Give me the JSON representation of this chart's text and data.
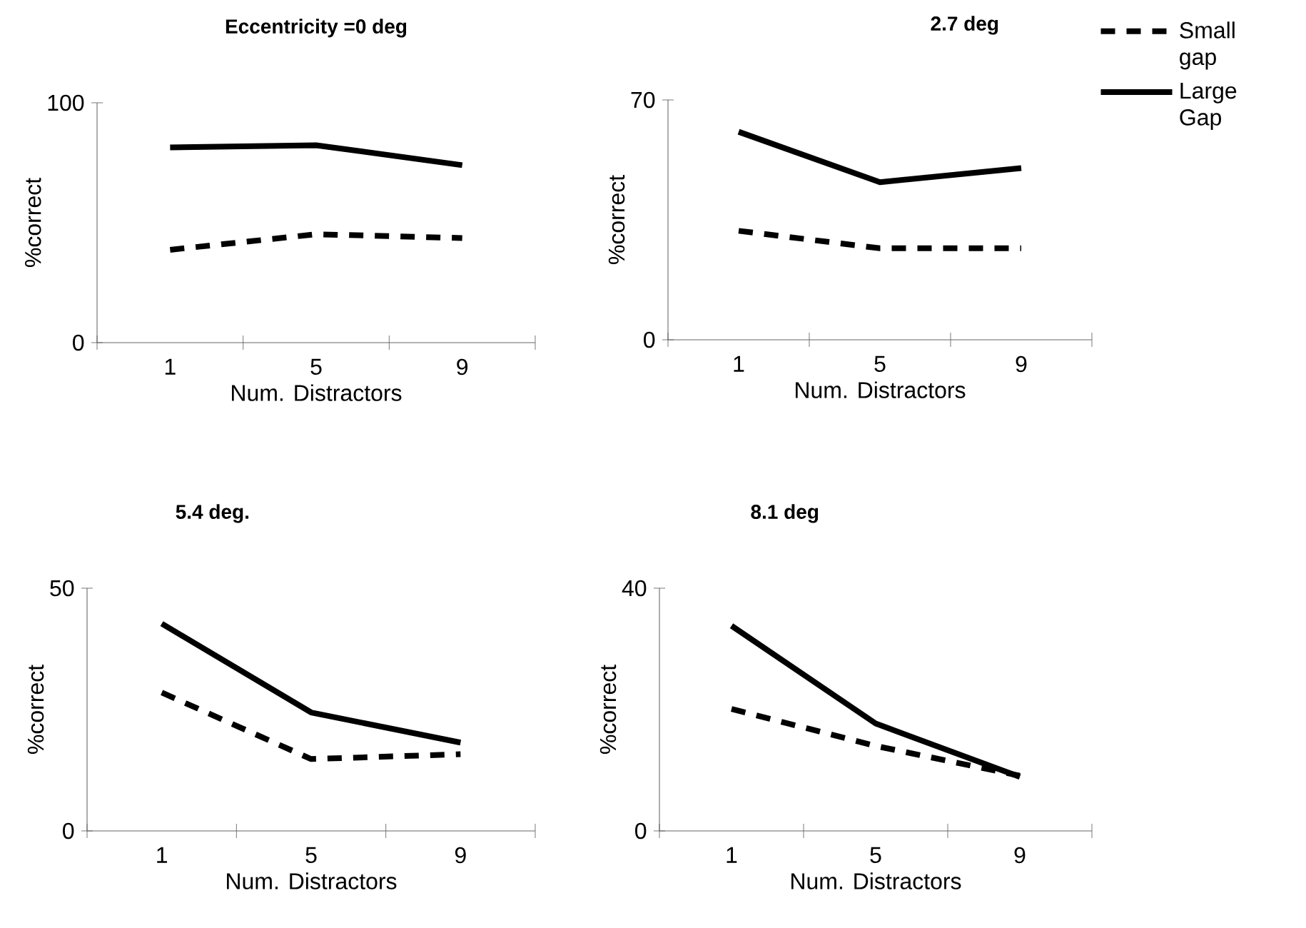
{
  "chart_data": [
    {
      "type": "line",
      "title": "Eccentricity =0 deg",
      "xlabel": "Num. Distractors",
      "ylabel": "%correct",
      "categories": [
        "1",
        "5",
        "9"
      ],
      "ylim": [
        0,
        100
      ],
      "yticks": [
        0,
        100
      ],
      "series": [
        {
          "color": "#000000",
          "line_style": "dashed",
          "values": [
            38.7,
            45.2,
            43.6
          ]
        },
        {
          "color": "#000000",
          "line_style": "solid",
          "values": [
            81.4,
            82.3,
            74
          ]
        }
      ]
    },
    {
      "type": "line",
      "title": "2.7 deg",
      "xlabel": "Num. Distractors",
      "ylabel": "%correct",
      "categories": [
        "1",
        "5",
        "9"
      ],
      "ylim": [
        0,
        70
      ],
      "yticks": [
        0,
        70
      ],
      "legend": "right",
      "series": [
        {
          "name": "Small gap",
          "color": "#000000",
          "line_style": "dashed",
          "values": [
            31.8,
            26.7,
            26.7
          ]
        },
        {
          "name": "Large Gap",
          "color": "#000000",
          "line_style": "solid",
          "values": [
            60.7,
            46,
            50.1
          ]
        }
      ]
    },
    {
      "type": "line",
      "title": "5.4 deg.",
      "xlabel": "Num. Distractors",
      "ylabel": "%correct",
      "categories": [
        "1",
        "5",
        "9"
      ],
      "ylim": [
        0,
        50
      ],
      "yticks": [
        0,
        50
      ],
      "series": [
        {
          "color": "#000000",
          "line_style": "dashed",
          "values": [
            28.5,
            14.8,
            15.8
          ]
        },
        {
          "color": "#000000",
          "line_style": "solid",
          "values": [
            42.7,
            24.4,
            18.2
          ]
        }
      ]
    },
    {
      "type": "line",
      "title": "8.1 deg",
      "xlabel": "Num. Distractors",
      "ylabel": "%correct",
      "categories": [
        "1",
        "5",
        "9"
      ],
      "ylim": [
        0,
        40
      ],
      "yticks": [
        0,
        40
      ],
      "series": [
        {
          "color": "#000000",
          "line_style": "dashed",
          "values": [
            20.1,
            14.0,
            9.1
          ]
        },
        {
          "color": "#000000",
          "line_style": "solid",
          "values": [
            33.8,
            17.7,
            8.9
          ]
        }
      ]
    }
  ]
}
